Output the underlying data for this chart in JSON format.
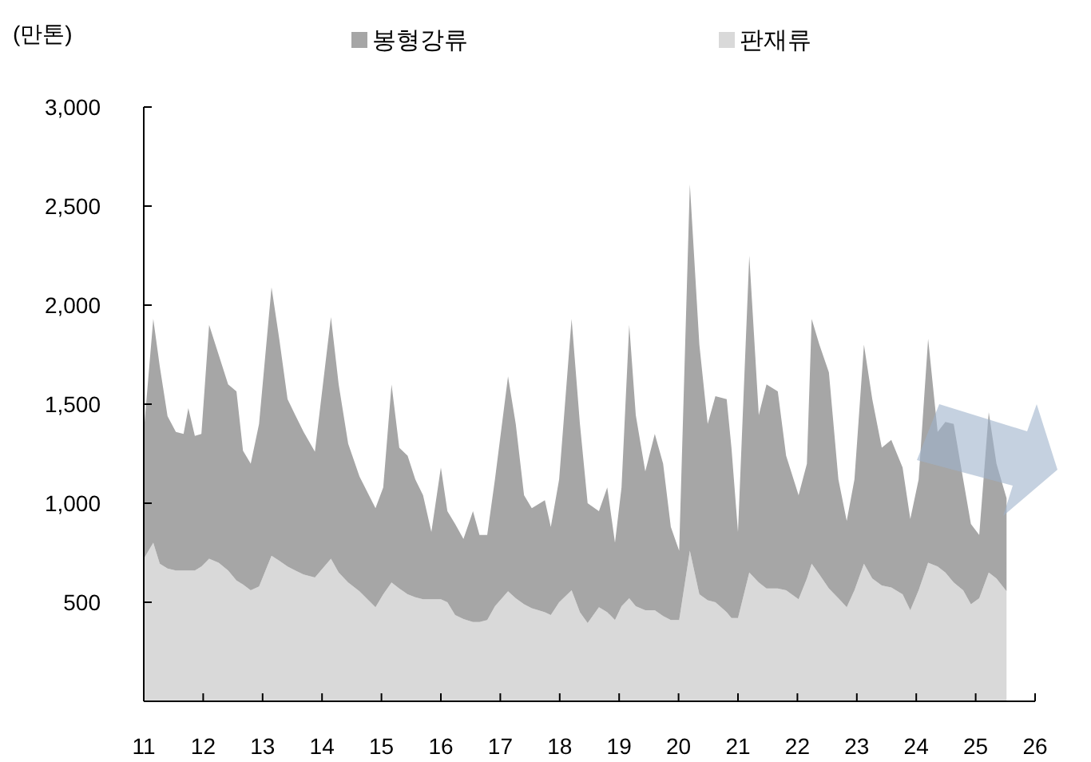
{
  "chart_data": {
    "type": "area",
    "stacked": true,
    "ylabel": "(만톤)",
    "legend": "top",
    "grid": false,
    "x": [
      11.0,
      11.16,
      11.27,
      11.4,
      11.54,
      11.67,
      11.75,
      11.86,
      11.97,
      12.1,
      12.26,
      12.42,
      12.56,
      12.67,
      12.8,
      12.94,
      13.15,
      13.28,
      13.42,
      13.55,
      13.69,
      13.88,
      14.15,
      14.28,
      14.44,
      14.63,
      14.9,
      15.03,
      15.17,
      15.3,
      15.44,
      15.57,
      15.7,
      15.84,
      16.0,
      16.11,
      16.24,
      16.38,
      16.54,
      16.65,
      16.78,
      16.91,
      17.13,
      17.26,
      17.4,
      17.53,
      17.75,
      17.85,
      17.99,
      18.2,
      18.34,
      18.47,
      18.66,
      18.8,
      18.93,
      19.04,
      19.17,
      19.28,
      19.44,
      19.6,
      19.74,
      19.87,
      20.01,
      20.19,
      20.35,
      20.49,
      20.62,
      20.81,
      20.89,
      21.0,
      21.19,
      21.35,
      21.48,
      21.67,
      21.81,
      22.02,
      22.16,
      22.24,
      22.37,
      22.53,
      22.69,
      22.83,
      22.96,
      23.12,
      23.26,
      23.42,
      23.58,
      23.77,
      23.9,
      24.04,
      24.2,
      24.36,
      24.49,
      24.63,
      24.79,
      24.92,
      25.06,
      25.22,
      25.35,
      25.52
    ],
    "series": [
      {
        "name": "판재류",
        "color": "#d9d9d9",
        "values": [
          720,
          800,
          695,
          670,
          660,
          660,
          660,
          660,
          680,
          720,
          700,
          660,
          610,
          590,
          560,
          580,
          735,
          710,
          680,
          660,
          640,
          625,
          720,
          650,
          600,
          555,
          475,
          540,
          600,
          570,
          540,
          525,
          515,
          515,
          515,
          500,
          435,
          415,
          400,
          400,
          410,
          480,
          555,
          520,
          490,
          470,
          450,
          435,
          500,
          560,
          450,
          395,
          475,
          450,
          410,
          480,
          520,
          480,
          460,
          460,
          430,
          410,
          410,
          760,
          540,
          510,
          500,
          450,
          420,
          420,
          650,
          600,
          570,
          570,
          560,
          515,
          620,
          695,
          640,
          570,
          520,
          475,
          560,
          695,
          620,
          585,
          575,
          540,
          460,
          560,
          700,
          680,
          650,
          600,
          560,
          490,
          520,
          650,
          620,
          555
        ]
      },
      {
        "name": "봉형강류",
        "color": "#a6a6a6",
        "values": [
          640,
          1130,
          995,
          770,
          700,
          690,
          820,
          680,
          670,
          1180,
          1050,
          940,
          955,
          675,
          640,
          820,
          1355,
          1120,
          845,
          785,
          720,
          635,
          1220,
          950,
          700,
          580,
          500,
          540,
          1000,
          710,
          700,
          595,
          525,
          340,
          665,
          460,
          460,
          405,
          560,
          440,
          430,
          640,
          1085,
          880,
          550,
          505,
          565,
          445,
          620,
          1370,
          950,
          605,
          485,
          630,
          390,
          600,
          1380,
          965,
          700,
          890,
          770,
          470,
          350,
          1850,
          1260,
          890,
          1040,
          1075,
          860,
          435,
          1600,
          845,
          1030,
          995,
          680,
          525,
          580,
          1235,
          1160,
          1090,
          600,
          435,
          560,
          1105,
          905,
          695,
          745,
          640,
          460,
          560,
          1130,
          680,
          760,
          800,
          560,
          405,
          320,
          810,
          580,
          470
        ]
      }
    ],
    "xlim": [
      11,
      26
    ],
    "xticks": [
      11,
      12,
      13,
      14,
      15,
      16,
      17,
      18,
      19,
      20,
      21,
      22,
      23,
      24,
      25,
      26
    ],
    "ylim": [
      0,
      3000
    ],
    "yticks": [
      500,
      {
        "value": 1000,
        "label": "1,000"
      },
      {
        "value": 1500,
        "label": "1,500"
      },
      {
        "value": 2000,
        "label": "2,000"
      },
      {
        "value": 2500,
        "label": "2,500"
      },
      {
        "value": 3000,
        "label": "3,000"
      }
    ]
  }
}
